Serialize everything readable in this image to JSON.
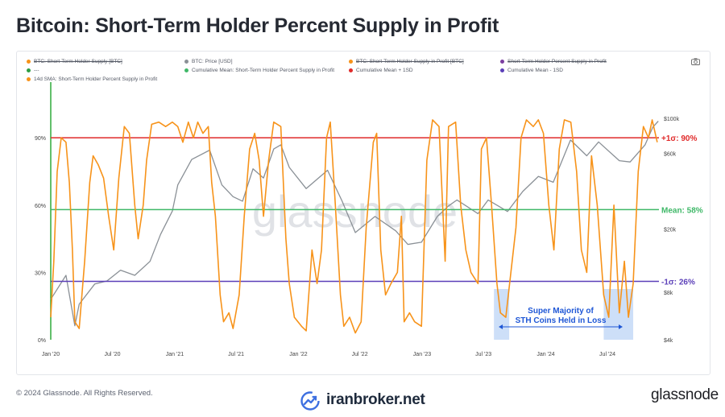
{
  "title": "Bitcoin: Short-Term Holder Percent Supply in Profit",
  "legend": [
    {
      "label": "BTC: Short-Term Holder Supply [BTC]",
      "color": "#f7931a",
      "struck": true
    },
    {
      "label": "BTC: Price [USD]",
      "color": "#8a9096",
      "struck": false
    },
    {
      "label": "BTC: Short-Term Holder Supply in Profit [BTC]",
      "color": "#f7931a",
      "struck": true
    },
    {
      "label": "Short-Term Holder Percent Supply in Profit",
      "color": "#7b3fa0",
      "struck": true
    },
    {
      "label": "---",
      "color": "#2e9e44",
      "struck": false
    },
    {
      "label": "Cumulative Mean: Short-Term Holder Percent Supply in Profit",
      "color": "#3fb868",
      "struck": false
    },
    {
      "label": "Cumulative Mean + 1SD",
      "color": "#e02a2a",
      "struck": false
    },
    {
      "label": "Cumulative Mean - 1SD",
      "color": "#5b3fb8",
      "struck": false
    },
    {
      "label": "14d SMA: Short-Term Holder Percent Supply in Profit",
      "color": "#f7931a",
      "struck": false
    }
  ],
  "watermark": "glassnode",
  "footer": {
    "copyright": "© 2024 Glassnode. All Rights Reserved.",
    "source_site": "iranbroker.net",
    "brand": "glassnode"
  },
  "colors": {
    "sth_line": "#f7931a",
    "price_line": "#8a9096",
    "mean_line": "#3fb868",
    "upper_line": "#e02a2a",
    "lower_line": "#5b3fb8",
    "green_vline": "#2eaa3a",
    "highlight": "#bcd4f5",
    "annotation": "#1f57d6"
  },
  "chart_data": {
    "type": "line",
    "title": "Bitcoin: Short-Term Holder Percent Supply in Profit",
    "x_ticks": [
      "Jan '20",
      "Jul '20",
      "Jan '21",
      "Jul '21",
      "Jan '22",
      "Jul '22",
      "Jan '23",
      "Jul '23",
      "Jan '24",
      "Jul '24"
    ],
    "xlim": [
      "2020-01-01",
      "2024-11-30"
    ],
    "y_left": {
      "ticks": [
        "0%",
        "30%",
        "60%",
        "90%"
      ],
      "range": [
        0,
        100
      ]
    },
    "y_right": {
      "ticks": [
        "$4k",
        "$8k",
        "$20k",
        "$60k",
        "$100k"
      ],
      "range": [
        4000,
        110000
      ],
      "scale": "log"
    },
    "grid": false,
    "legend_position": "top",
    "reference_lines": [
      {
        "name": "Cumulative Mean + 1SD",
        "value": 90,
        "label": "+1σ: 90%"
      },
      {
        "name": "Cumulative Mean: Short-Term Holder Percent Supply in Profit",
        "value": 58,
        "label": "Mean: 58%"
      },
      {
        "name": "Cumulative Mean - 1SD",
        "value": 26,
        "label": "-1σ: 26%"
      }
    ],
    "highlight_regions": [
      {
        "start": "2023-08-01",
        "end": "2023-09-15"
      },
      {
        "start": "2024-06-20",
        "end": "2024-09-15"
      }
    ],
    "annotation": {
      "lines": [
        "Super Majority of",
        "STH Coins Held in Loss"
      ],
      "arrow_from": "2023-08-15",
      "arrow_to": "2024-08-15"
    },
    "series": [
      {
        "name": "14d SMA: Short-Term Holder Percent Supply in Profit",
        "axis": "left",
        "points": [
          [
            "2020-01-01",
            10
          ],
          [
            "2020-01-10",
            35
          ],
          [
            "2020-01-20",
            75
          ],
          [
            "2020-02-01",
            90
          ],
          [
            "2020-02-15",
            88
          ],
          [
            "2020-02-25",
            70
          ],
          [
            "2020-03-05",
            40
          ],
          [
            "2020-03-12",
            8
          ],
          [
            "2020-03-25",
            5
          ],
          [
            "2020-04-10",
            35
          ],
          [
            "2020-04-25",
            70
          ],
          [
            "2020-05-05",
            82
          ],
          [
            "2020-05-20",
            78
          ],
          [
            "2020-06-05",
            72
          ],
          [
            "2020-06-20",
            55
          ],
          [
            "2020-07-05",
            40
          ],
          [
            "2020-07-20",
            72
          ],
          [
            "2020-08-05",
            95
          ],
          [
            "2020-08-20",
            92
          ],
          [
            "2020-09-05",
            60
          ],
          [
            "2020-09-15",
            45
          ],
          [
            "2020-09-30",
            60
          ],
          [
            "2020-10-10",
            80
          ],
          [
            "2020-10-25",
            96
          ],
          [
            "2020-11-15",
            97
          ],
          [
            "2020-12-05",
            95
          ],
          [
            "2020-12-25",
            97
          ],
          [
            "2021-01-10",
            95
          ],
          [
            "2021-01-25",
            88
          ],
          [
            "2021-02-10",
            97
          ],
          [
            "2021-02-25",
            90
          ],
          [
            "2021-03-10",
            97
          ],
          [
            "2021-03-25",
            92
          ],
          [
            "2021-04-10",
            95
          ],
          [
            "2021-04-20",
            70
          ],
          [
            "2021-05-01",
            55
          ],
          [
            "2021-05-15",
            20
          ],
          [
            "2021-05-25",
            8
          ],
          [
            "2021-06-10",
            12
          ],
          [
            "2021-06-22",
            5
          ],
          [
            "2021-07-10",
            20
          ],
          [
            "2021-07-25",
            55
          ],
          [
            "2021-08-10",
            85
          ],
          [
            "2021-08-25",
            92
          ],
          [
            "2021-09-07",
            80
          ],
          [
            "2021-09-20",
            55
          ],
          [
            "2021-10-05",
            80
          ],
          [
            "2021-10-20",
            97
          ],
          [
            "2021-11-10",
            95
          ],
          [
            "2021-11-25",
            45
          ],
          [
            "2021-12-05",
            25
          ],
          [
            "2021-12-20",
            10
          ],
          [
            "2022-01-10",
            6
          ],
          [
            "2022-01-24",
            4
          ],
          [
            "2022-02-10",
            40
          ],
          [
            "2022-02-25",
            25
          ],
          [
            "2022-03-10",
            40
          ],
          [
            "2022-03-25",
            90
          ],
          [
            "2022-04-05",
            97
          ],
          [
            "2022-04-20",
            60
          ],
          [
            "2022-05-05",
            20
          ],
          [
            "2022-05-15",
            6
          ],
          [
            "2022-06-01",
            10
          ],
          [
            "2022-06-18",
            3
          ],
          [
            "2022-07-05",
            8
          ],
          [
            "2022-07-20",
            50
          ],
          [
            "2022-08-10",
            88
          ],
          [
            "2022-08-20",
            92
          ],
          [
            "2022-09-01",
            40
          ],
          [
            "2022-09-15",
            20
          ],
          [
            "2022-10-01",
            25
          ],
          [
            "2022-10-20",
            30
          ],
          [
            "2022-11-01",
            55
          ],
          [
            "2022-11-09",
            8
          ],
          [
            "2022-11-25",
            12
          ],
          [
            "2022-12-10",
            8
          ],
          [
            "2022-12-30",
            6
          ],
          [
            "2023-01-15",
            80
          ],
          [
            "2023-02-01",
            98
          ],
          [
            "2023-02-20",
            95
          ],
          [
            "2023-03-10",
            35
          ],
          [
            "2023-03-20",
            95
          ],
          [
            "2023-04-10",
            97
          ],
          [
            "2023-04-25",
            60
          ],
          [
            "2023-05-10",
            40
          ],
          [
            "2023-05-25",
            30
          ],
          [
            "2023-06-15",
            25
          ],
          [
            "2023-06-25",
            85
          ],
          [
            "2023-07-10",
            90
          ],
          [
            "2023-07-25",
            60
          ],
          [
            "2023-08-10",
            25
          ],
          [
            "2023-08-20",
            12
          ],
          [
            "2023-09-05",
            10
          ],
          [
            "2023-09-20",
            30
          ],
          [
            "2023-10-05",
            50
          ],
          [
            "2023-10-20",
            90
          ],
          [
            "2023-11-05",
            98
          ],
          [
            "2023-11-25",
            95
          ],
          [
            "2023-12-10",
            98
          ],
          [
            "2023-12-25",
            92
          ],
          [
            "2024-01-10",
            60
          ],
          [
            "2024-01-25",
            40
          ],
          [
            "2024-02-10",
            85
          ],
          [
            "2024-02-25",
            98
          ],
          [
            "2024-03-15",
            97
          ],
          [
            "2024-04-01",
            75
          ],
          [
            "2024-04-15",
            40
          ],
          [
            "2024-05-01",
            30
          ],
          [
            "2024-05-15",
            82
          ],
          [
            "2024-06-01",
            60
          ],
          [
            "2024-06-20",
            20
          ],
          [
            "2024-07-05",
            10
          ],
          [
            "2024-07-20",
            60
          ],
          [
            "2024-08-05",
            12
          ],
          [
            "2024-08-20",
            35
          ],
          [
            "2024-09-01",
            10
          ],
          [
            "2024-09-15",
            25
          ],
          [
            "2024-09-30",
            75
          ],
          [
            "2024-10-15",
            95
          ],
          [
            "2024-10-30",
            90
          ],
          [
            "2024-11-10",
            98
          ],
          [
            "2024-11-25",
            88
          ]
        ]
      },
      {
        "name": "BTC: Price [USD]",
        "axis": "right",
        "points": [
          [
            "2020-01-01",
            7200
          ],
          [
            "2020-02-15",
            10200
          ],
          [
            "2020-03-12",
            4900
          ],
          [
            "2020-03-25",
            6700
          ],
          [
            "2020-05-10",
            9000
          ],
          [
            "2020-06-15",
            9400
          ],
          [
            "2020-07-25",
            11000
          ],
          [
            "2020-09-05",
            10200
          ],
          [
            "2020-10-20",
            12500
          ],
          [
            "2020-11-20",
            18500
          ],
          [
            "2020-12-25",
            26000
          ],
          [
            "2021-01-10",
            38000
          ],
          [
            "2021-02-20",
            55000
          ],
          [
            "2021-04-14",
            63000
          ],
          [
            "2021-05-20",
            38000
          ],
          [
            "2021-06-22",
            32000
          ],
          [
            "2021-07-20",
            30000
          ],
          [
            "2021-08-20",
            48000
          ],
          [
            "2021-09-20",
            42000
          ],
          [
            "2021-10-20",
            64000
          ],
          [
            "2021-11-10",
            68000
          ],
          [
            "2021-12-05",
            49000
          ],
          [
            "2022-01-24",
            36000
          ],
          [
            "2022-03-28",
            47000
          ],
          [
            "2022-05-10",
            30000
          ],
          [
            "2022-06-18",
            19000
          ],
          [
            "2022-08-15",
            24000
          ],
          [
            "2022-10-15",
            19500
          ],
          [
            "2022-11-20",
            16000
          ],
          [
            "2022-12-30",
            16500
          ],
          [
            "2023-02-15",
            24000
          ],
          [
            "2023-03-20",
            28000
          ],
          [
            "2023-04-14",
            30500
          ],
          [
            "2023-06-15",
            25000
          ],
          [
            "2023-07-15",
            30500
          ],
          [
            "2023-09-10",
            25800
          ],
          [
            "2023-10-25",
            34500
          ],
          [
            "2023-12-10",
            43000
          ],
          [
            "2024-01-23",
            39500
          ],
          [
            "2024-03-14",
            73000
          ],
          [
            "2024-05-01",
            58000
          ],
          [
            "2024-06-05",
            71000
          ],
          [
            "2024-08-05",
            54000
          ],
          [
            "2024-09-06",
            53000
          ],
          [
            "2024-10-20",
            68000
          ],
          [
            "2024-11-12",
            88000
          ],
          [
            "2024-11-28",
            96000
          ]
        ]
      }
    ]
  }
}
